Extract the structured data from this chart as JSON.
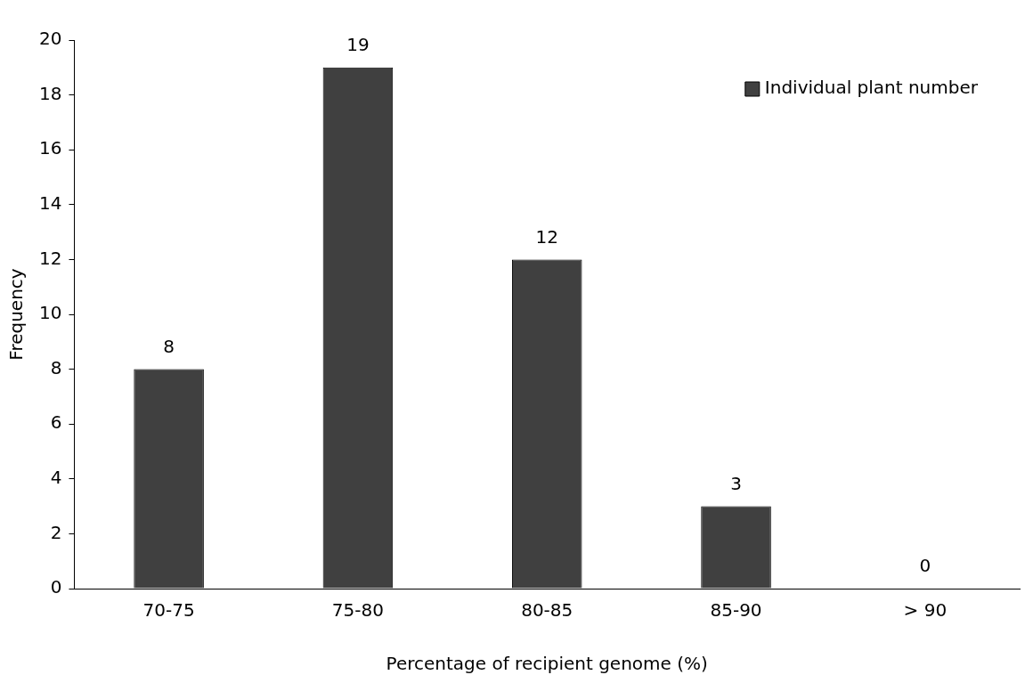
{
  "chart_data": {
    "type": "bar",
    "xlabel": "Percentage of recipient genome (%)",
    "ylabel": "Frequency",
    "categories": [
      "70-75",
      "75-80",
      "80-85",
      "85-90",
      "> 90"
    ],
    "series": [
      {
        "name": "Individual plant number",
        "color": "#404040",
        "values": [
          8,
          19,
          12,
          3,
          0
        ]
      }
    ],
    "ylim": [
      0,
      20
    ],
    "yticks": [
      0,
      2,
      4,
      6,
      8,
      10,
      12,
      14,
      16,
      18,
      20
    ],
    "grid": false,
    "legend": "top right",
    "data_labels": true
  }
}
